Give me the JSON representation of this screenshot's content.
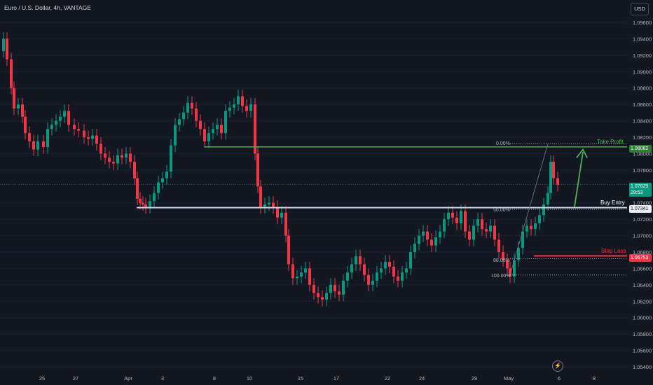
{
  "header": {
    "title": "Euro / U.S. Dollar, 4h, VANTAGE",
    "currency_button": "USD"
  },
  "colors": {
    "background": "#131722",
    "up": "#089981",
    "down": "#f23645",
    "take_profit": "#4caf50",
    "buy_entry": "#c8d6e5",
    "stop_loss": "#f23645"
  },
  "price_axis": {
    "ticks": [
      "1.09600",
      "1.09400",
      "1.09200",
      "1.09000",
      "1.08800",
      "1.08600",
      "1.08400",
      "1.08200",
      "1.08000",
      "1.07800",
      "1.07400",
      "1.07200",
      "1.07000",
      "1.06800",
      "1.06600",
      "1.06400",
      "1.06200",
      "1.06000",
      "1.05800",
      "1.05600",
      "1.05400"
    ]
  },
  "time_axis": {
    "ticks": [
      "25",
      "27",
      "Apr",
      "3",
      "8",
      "10",
      "15",
      "17",
      "22",
      "24",
      "29",
      "May",
      "6",
      "8"
    ]
  },
  "levels": {
    "take_profit": {
      "label": "Take Profit",
      "price": "1.08082"
    },
    "buy_entry": {
      "label": "Buy Entry",
      "price": "1.07341"
    },
    "stop_loss": {
      "label": "Stop Loss",
      "price": "1.06753"
    },
    "current": {
      "price": "1.07625",
      "countdown": "29:53"
    }
  },
  "fib": {
    "f0": "0.00%",
    "f50": "50.00%",
    "f88": "88.00%",
    "f100": "100.00%"
  },
  "icons": {
    "replay": "lightning-icon"
  }
}
